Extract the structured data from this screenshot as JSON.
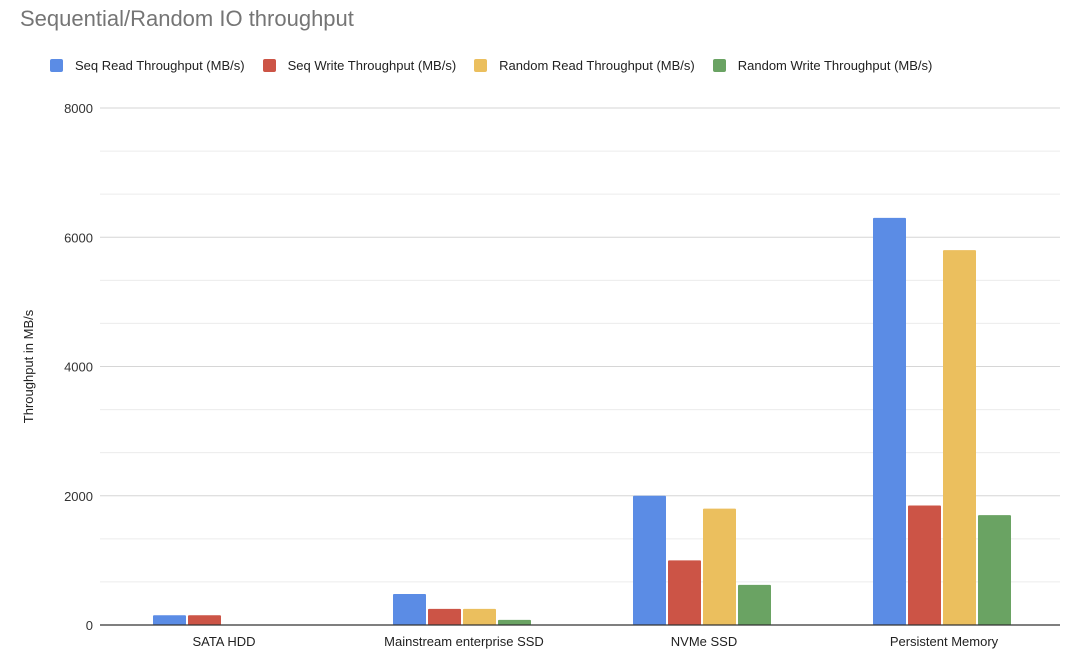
{
  "chart_data": {
    "type": "bar",
    "title": "Sequential/Random IO throughput",
    "ylabel": "Throughput in MB/s",
    "xlabel": "",
    "ylim": [
      0,
      8000
    ],
    "yticks": [
      "0",
      "2000",
      "4000",
      "6000",
      "8000"
    ],
    "grid": true,
    "legend_position": "top",
    "categories": [
      "SATA HDD",
      "Mainstream enterprise SSD",
      "NVMe SSD",
      "Persistent Memory"
    ],
    "series": [
      {
        "name": "Seq Read Throughput (MB/s)",
        "color": "#5b8ce5",
        "values": [
          150,
          480,
          2000,
          6300
        ]
      },
      {
        "name": "Seq Write Throughput (MB/s)",
        "color": "#cc5446",
        "values": [
          150,
          250,
          1000,
          1850
        ]
      },
      {
        "name": "Random Read Throughput (MB/s)",
        "color": "#ebbf5e",
        "values": [
          1,
          250,
          1800,
          5800
        ]
      },
      {
        "name": "Random Write Throughput (MB/s)",
        "color": "#6aa363",
        "values": [
          1,
          80,
          620,
          1700
        ]
      }
    ]
  }
}
